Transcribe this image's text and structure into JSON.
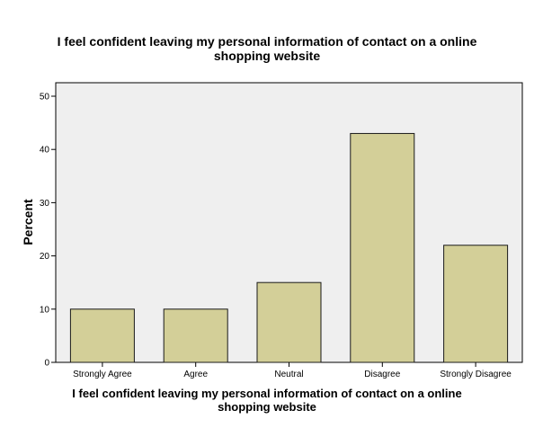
{
  "chart_data": {
    "type": "bar",
    "title": [
      "I feel confident leaving my personal information of contact on a online",
      "shopping website"
    ],
    "xlabel": [
      "I feel confident leaving my personal information of contact on a online",
      "shopping website"
    ],
    "ylabel": "Percent",
    "categories": [
      "Strongly Agree",
      "Agree",
      "Neutral",
      "Disagree",
      "Strongly Disagree"
    ],
    "values": [
      10,
      10,
      15,
      43,
      22
    ],
    "ylim": [
      0,
      50
    ],
    "yticks": [
      0,
      10,
      20,
      30,
      40,
      50
    ],
    "grid": false,
    "colors": {
      "bar_fill": "#d3cf98",
      "bar_stroke": "#1a1a1a",
      "plot_background": "#efefef",
      "axis": "#000000"
    }
  }
}
